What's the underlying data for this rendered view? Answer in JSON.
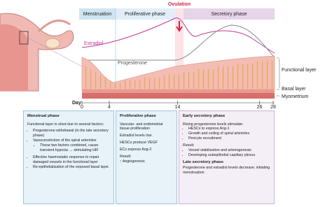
{
  "ovulation": "Ovulation",
  "phases": [
    "Menstruation",
    "Proliferative phase",
    "Secretory phase"
  ],
  "hormones": [
    "Estradiol",
    "Progesterone"
  ],
  "layers": [
    "Functional layer",
    "Basal layer",
    "Myometrium"
  ],
  "day_axis": {
    "label": "Day",
    "ticks": [
      0,
      4,
      14,
      26,
      28
    ],
    "xlim": [
      0,
      28
    ]
  },
  "boxes": [
    {
      "title": "Menstrual phase",
      "text": "Functional layer is shed due to several factors:",
      "items": [
        "Progesterone withdrawal (in the late secretory phase)",
        "Vasoconstriction of the spiral arterioles"
      ],
      "subitems": [
        "These two factors combined, cause transient hypoxia → stimulating HIF"
      ],
      "items2": [
        "Effective haemostatic response to repair damaged vessels in the functional layer",
        "Re-epithelialization of the exposed basal layer."
      ]
    },
    {
      "title": "Proliferative phase",
      "text": "Vascular- and endometrial tissue proliferation",
      "items": [
        "Estradiol levels rise.",
        "HESCs produce VEGF",
        "ECs express Ang-2"
      ],
      "result": "Result:",
      "result_items": [
        "↑ Angiogenesis"
      ]
    },
    {
      "title": "Early secretory phase",
      "text": "Rising progesterone levels stimulate:",
      "items": [
        "HESCs to express Ang-1",
        "Growth and coiling of spiral arterioles",
        "Pericyte recruitment"
      ],
      "result": "Result:",
      "result_items": [
        "Vessel stabilization and arteriogenesis",
        "Developing subepithelial capillary plexus"
      ],
      "late_title": "Late secretory phase",
      "late_text": "Progesterone and estradiol levels decrease; initiating menstruation"
    }
  ]
}
